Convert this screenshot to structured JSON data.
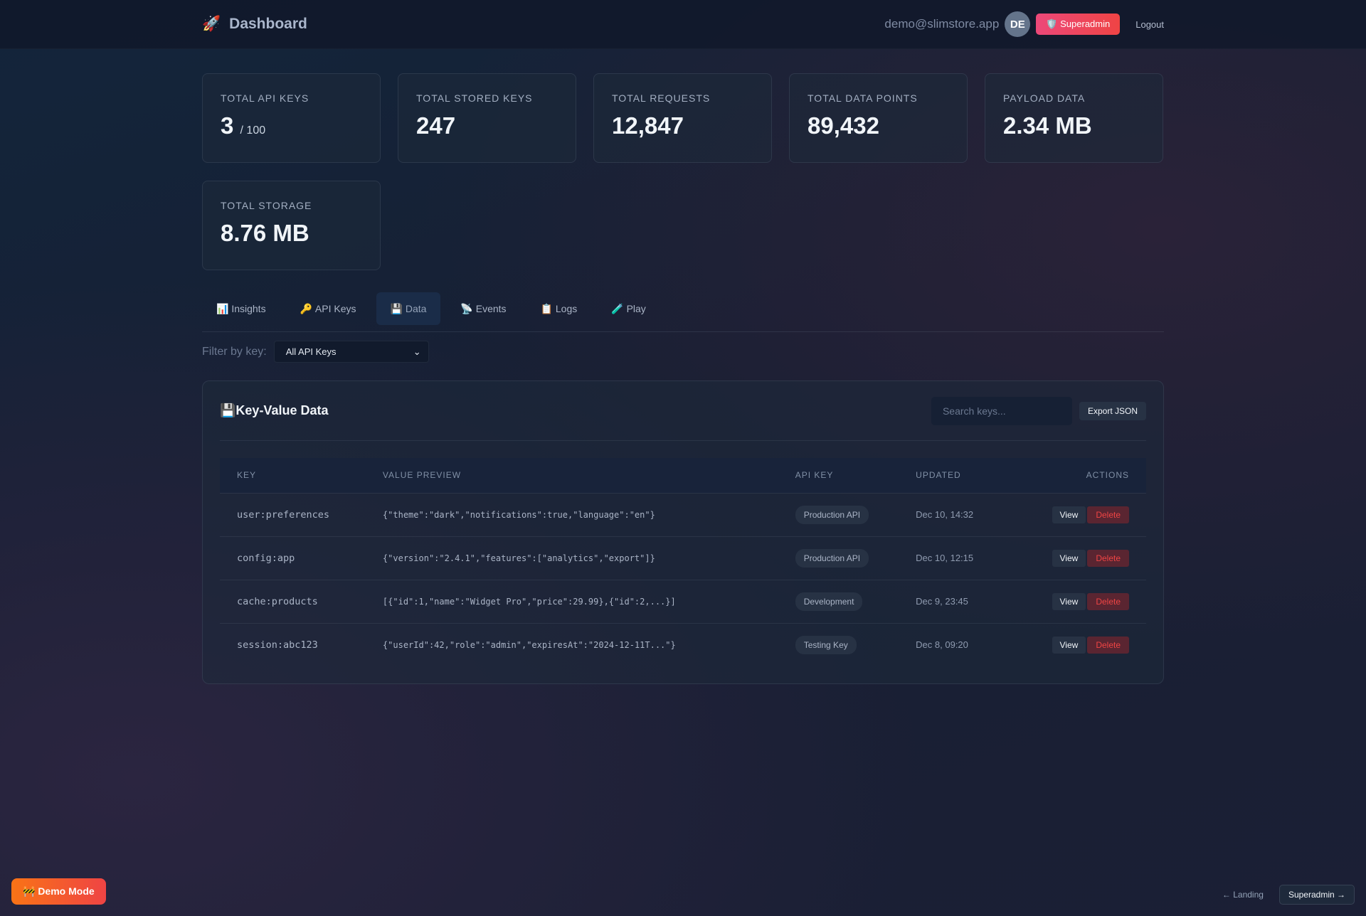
{
  "header": {
    "title": "Dashboard",
    "icon": "rocket-icon",
    "email": "demo@slimstore.app",
    "avatar": "DE",
    "superadmin": "Superadmin",
    "logout": "Logout"
  },
  "stats": [
    {
      "label": "TOTAL API KEYS",
      "value": "3",
      "sub": "/ 100"
    },
    {
      "label": "TOTAL STORED KEYS",
      "value": "247"
    },
    {
      "label": "TOTAL REQUESTS",
      "value": "12,847"
    },
    {
      "label": "TOTAL DATA POINTS",
      "value": "89,432"
    },
    {
      "label": "PAYLOAD DATA",
      "value": "2.34 MB"
    },
    {
      "label": "TOTAL STORAGE",
      "value": "8.76 MB"
    }
  ],
  "tabs": [
    {
      "icon": "📊",
      "label": "Insights"
    },
    {
      "icon": "🔑",
      "label": "API Keys"
    },
    {
      "icon": "💾",
      "label": "Data",
      "active": true
    },
    {
      "icon": "📡",
      "label": "Events"
    },
    {
      "icon": "📋",
      "label": "Logs"
    },
    {
      "icon": "🧪",
      "label": "Play"
    }
  ],
  "filter": {
    "label": "Filter by key:",
    "selected": "All API Keys"
  },
  "panel": {
    "icon": "💾",
    "title": "Key-Value Data",
    "search_placeholder": "Search keys...",
    "export": "Export JSON",
    "columns": [
      "KEY",
      "VALUE PREVIEW",
      "API KEY",
      "UPDATED",
      "ACTIONS"
    ],
    "rows": [
      {
        "key": "user:preferences",
        "value": "{\"theme\":\"dark\",\"notifications\":true,\"language\":\"en\"}",
        "api": "Production API",
        "updated": "Dec 10, 14:32"
      },
      {
        "key": "config:app",
        "value": "{\"version\":\"2.4.1\",\"features\":[\"analytics\",\"export\"]}",
        "api": "Production API",
        "updated": "Dec 10, 12:15"
      },
      {
        "key": "cache:products",
        "value": "[{\"id\":1,\"name\":\"Widget Pro\",\"price\":29.99},{\"id\":2,...}]",
        "api": "Development",
        "updated": "Dec 9, 23:45"
      },
      {
        "key": "session:abc123",
        "value": "{\"userId\":42,\"role\":\"admin\",\"expiresAt\":\"2024-12-11T...\"}",
        "api": "Testing Key",
        "updated": "Dec 8, 09:20"
      }
    ],
    "view": "View",
    "delete": "Delete"
  },
  "demo": "🚧 Demo Mode",
  "footer": {
    "landing": "← Landing",
    "superadmin": "Superadmin →"
  }
}
